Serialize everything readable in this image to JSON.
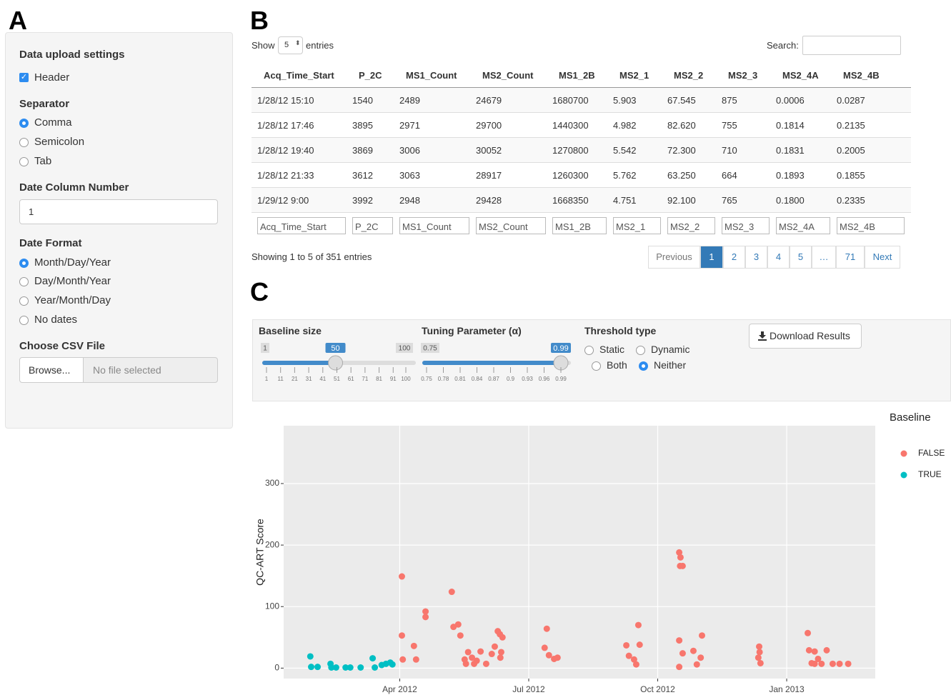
{
  "panel_a": {
    "label": "A",
    "title": "Data upload settings",
    "header_checkbox": "Header",
    "separator": {
      "label": "Separator",
      "options": [
        "Comma",
        "Semicolon",
        "Tab"
      ],
      "selected": 0
    },
    "date_column": {
      "label": "Date Column Number",
      "value": "1"
    },
    "date_format": {
      "label": "Date Format",
      "options": [
        "Month/Day/Year",
        "Day/Month/Year",
        "Year/Month/Day",
        "No dates"
      ],
      "selected": 0
    },
    "file": {
      "label": "Choose CSV File",
      "button": "Browse...",
      "status": "No file selected"
    }
  },
  "panel_b": {
    "label": "B",
    "show": "Show",
    "page_size": "5",
    "entries": "entries",
    "search": "Search:",
    "columns": [
      "Acq_Time_Start",
      "P_2C",
      "MS1_Count",
      "MS2_Count",
      "MS1_2B",
      "MS2_1",
      "MS2_2",
      "MS2_3",
      "MS2_4A",
      "MS2_4B"
    ],
    "rows": [
      [
        "1/28/12 15:10",
        "1540",
        "2489",
        "24679",
        "1680700",
        "5.903",
        "67.545",
        "875",
        "0.0006",
        "0.0287"
      ],
      [
        "1/28/12 17:46",
        "3895",
        "2971",
        "29700",
        "1440300",
        "4.982",
        "82.620",
        "755",
        "0.1814",
        "0.2135"
      ],
      [
        "1/28/12 19:40",
        "3869",
        "3006",
        "30052",
        "1270800",
        "5.542",
        "72.300",
        "710",
        "0.1831",
        "0.2005"
      ],
      [
        "1/28/12 21:33",
        "3612",
        "3063",
        "28917",
        "1260300",
        "5.762",
        "63.250",
        "664",
        "0.1893",
        "0.1855"
      ],
      [
        "1/29/12 9:00",
        "3992",
        "2948",
        "29428",
        "1668350",
        "4.751",
        "92.100",
        "765",
        "0.1800",
        "0.2335"
      ]
    ],
    "info": "Showing 1 to 5 of 351 entries",
    "pagination": [
      "Previous",
      "1",
      "2",
      "3",
      "4",
      "5",
      "…",
      "71",
      "Next"
    ],
    "active_index": 1
  },
  "panel_c": {
    "label": "C",
    "baseline_slider": {
      "label": "Baseline size",
      "min": 1,
      "max": 100,
      "value": 50,
      "ticks": [
        1,
        11,
        21,
        31,
        41,
        51,
        61,
        71,
        81,
        91,
        100
      ]
    },
    "tuning_slider": {
      "label": "Tuning Parameter (α)",
      "min": 0.75,
      "max": 0.99,
      "value": 0.99,
      "ticks": [
        0.75,
        0.78,
        0.81,
        0.84,
        0.87,
        0.9,
        0.93,
        0.96,
        0.99
      ]
    },
    "threshold": {
      "label": "Threshold type",
      "options": [
        "Static",
        "Dynamic",
        "Both",
        "Neither"
      ],
      "selected": 3
    },
    "download": "Download Results"
  },
  "chart_data": {
    "type": "scatter",
    "y_label": "QC-ART Score",
    "legend_title": "Baseline",
    "legend": "right",
    "grid": true,
    "xlim": [
      0.3,
      14.06
    ],
    "ylim": [
      -17,
      394
    ],
    "xticks": [
      {
        "value": 3,
        "label": "Apr 2012"
      },
      {
        "value": 6,
        "label": "Jul 2012"
      },
      {
        "value": 9,
        "label": "Oct 2012"
      },
      {
        "value": 12,
        "label": "Jan 2013"
      }
    ],
    "yticks": [
      0,
      100,
      200,
      300
    ],
    "series": [
      {
        "name": "FALSE",
        "color": "#f8766d",
        "x": [
          3.05,
          3.05,
          3.07,
          3.33,
          3.38,
          3.6,
          3.6,
          4.21,
          4.25,
          4.36,
          4.41,
          4.51,
          4.54,
          4.59,
          4.68,
          4.73,
          4.79,
          4.88,
          5.01,
          5.14,
          5.21,
          5.28,
          5.33,
          5.36,
          5.39,
          5.34,
          6.42,
          6.37,
          6.47,
          6.59,
          6.67,
          8.27,
          8.33,
          8.45,
          8.5,
          8.55,
          8.58,
          9.5,
          9.53,
          9.52,
          9.58,
          9.5,
          9.58,
          9.5,
          9.83,
          9.91,
          10.03,
          10.0,
          11.36,
          11.37,
          11.34,
          11.39,
          12.49,
          12.52,
          12.65,
          12.73,
          12.93,
          12.58,
          12.81,
          13.07,
          13.23,
          13.43,
          12.65
        ],
        "values": [
          149,
          53,
          14,
          36,
          14,
          92,
          83,
          124,
          67,
          71,
          53,
          14,
          7,
          26,
          17,
          7,
          12,
          27,
          7,
          23,
          35,
          60,
          55,
          26,
          50,
          17,
          64,
          33,
          21,
          15,
          17,
          37,
          20,
          14,
          6,
          70,
          38,
          188,
          180,
          166,
          166,
          45,
          24,
          2,
          28,
          6,
          53,
          17,
          35,
          26,
          17,
          8,
          57,
          29,
          27,
          15,
          29,
          8,
          7,
          7,
          7,
          7,
          7
        ]
      },
      {
        "name": "TRUE",
        "color": "#00bfc4",
        "x": [
          0.92,
          0.94,
          1.09,
          1.39,
          1.41,
          1.52,
          1.74,
          1.85,
          2.09,
          2.37,
          2.42,
          2.58,
          2.68,
          2.78,
          2.83
        ],
        "values": [
          19,
          2,
          2,
          7,
          1,
          1,
          1,
          1,
          1,
          16,
          1,
          5,
          7,
          9,
          6
        ]
      }
    ]
  }
}
